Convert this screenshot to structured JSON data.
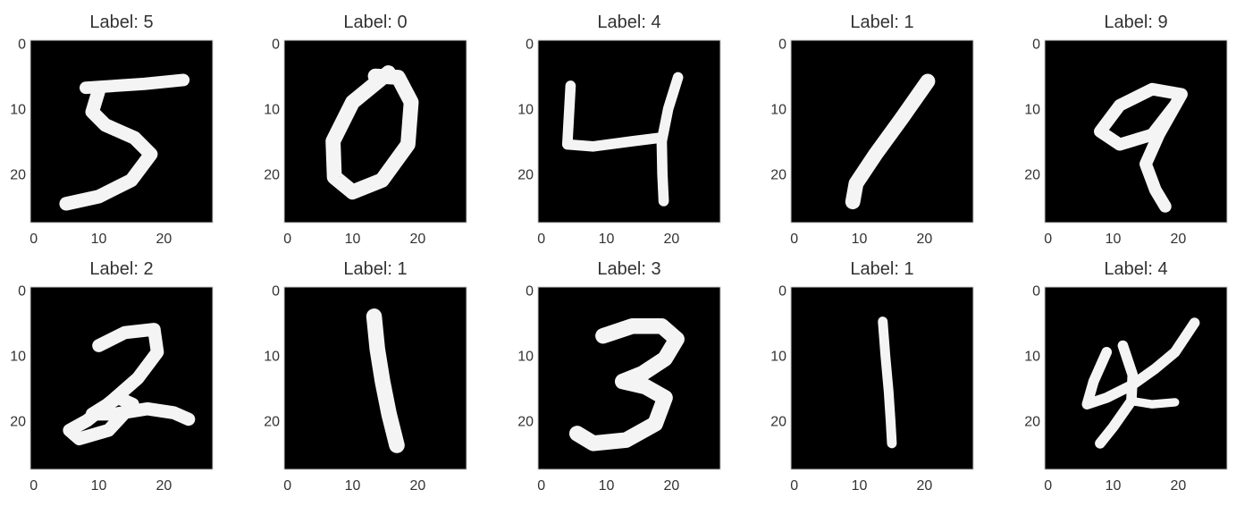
{
  "chart_data": {
    "type": "image-grid",
    "grid": {
      "rows": 2,
      "cols": 5
    },
    "axes": {
      "xticks": [
        0,
        10,
        20
      ],
      "yticks": [
        0,
        10,
        20
      ],
      "xlim": [
        -0.5,
        27.5
      ],
      "ylim": [
        27.5,
        -0.5
      ],
      "grid": false
    },
    "panels": [
      {
        "title": "Label: 5",
        "label": 5,
        "cmap": "gray"
      },
      {
        "title": "Label: 0",
        "label": 0,
        "cmap": "gray"
      },
      {
        "title": "Label: 4",
        "label": 4,
        "cmap": "gray"
      },
      {
        "title": "Label: 1",
        "label": 1,
        "cmap": "gray"
      },
      {
        "title": "Label: 9",
        "label": 9,
        "cmap": "gray"
      },
      {
        "title": "Label: 2",
        "label": 2,
        "cmap": "gray"
      },
      {
        "title": "Label: 1",
        "label": 1,
        "cmap": "gray"
      },
      {
        "title": "Label: 3",
        "label": 3,
        "cmap": "gray"
      },
      {
        "title": "Label: 1",
        "label": 1,
        "cmap": "gray"
      },
      {
        "title": "Label: 4",
        "label": 4,
        "cmap": "gray"
      }
    ]
  }
}
